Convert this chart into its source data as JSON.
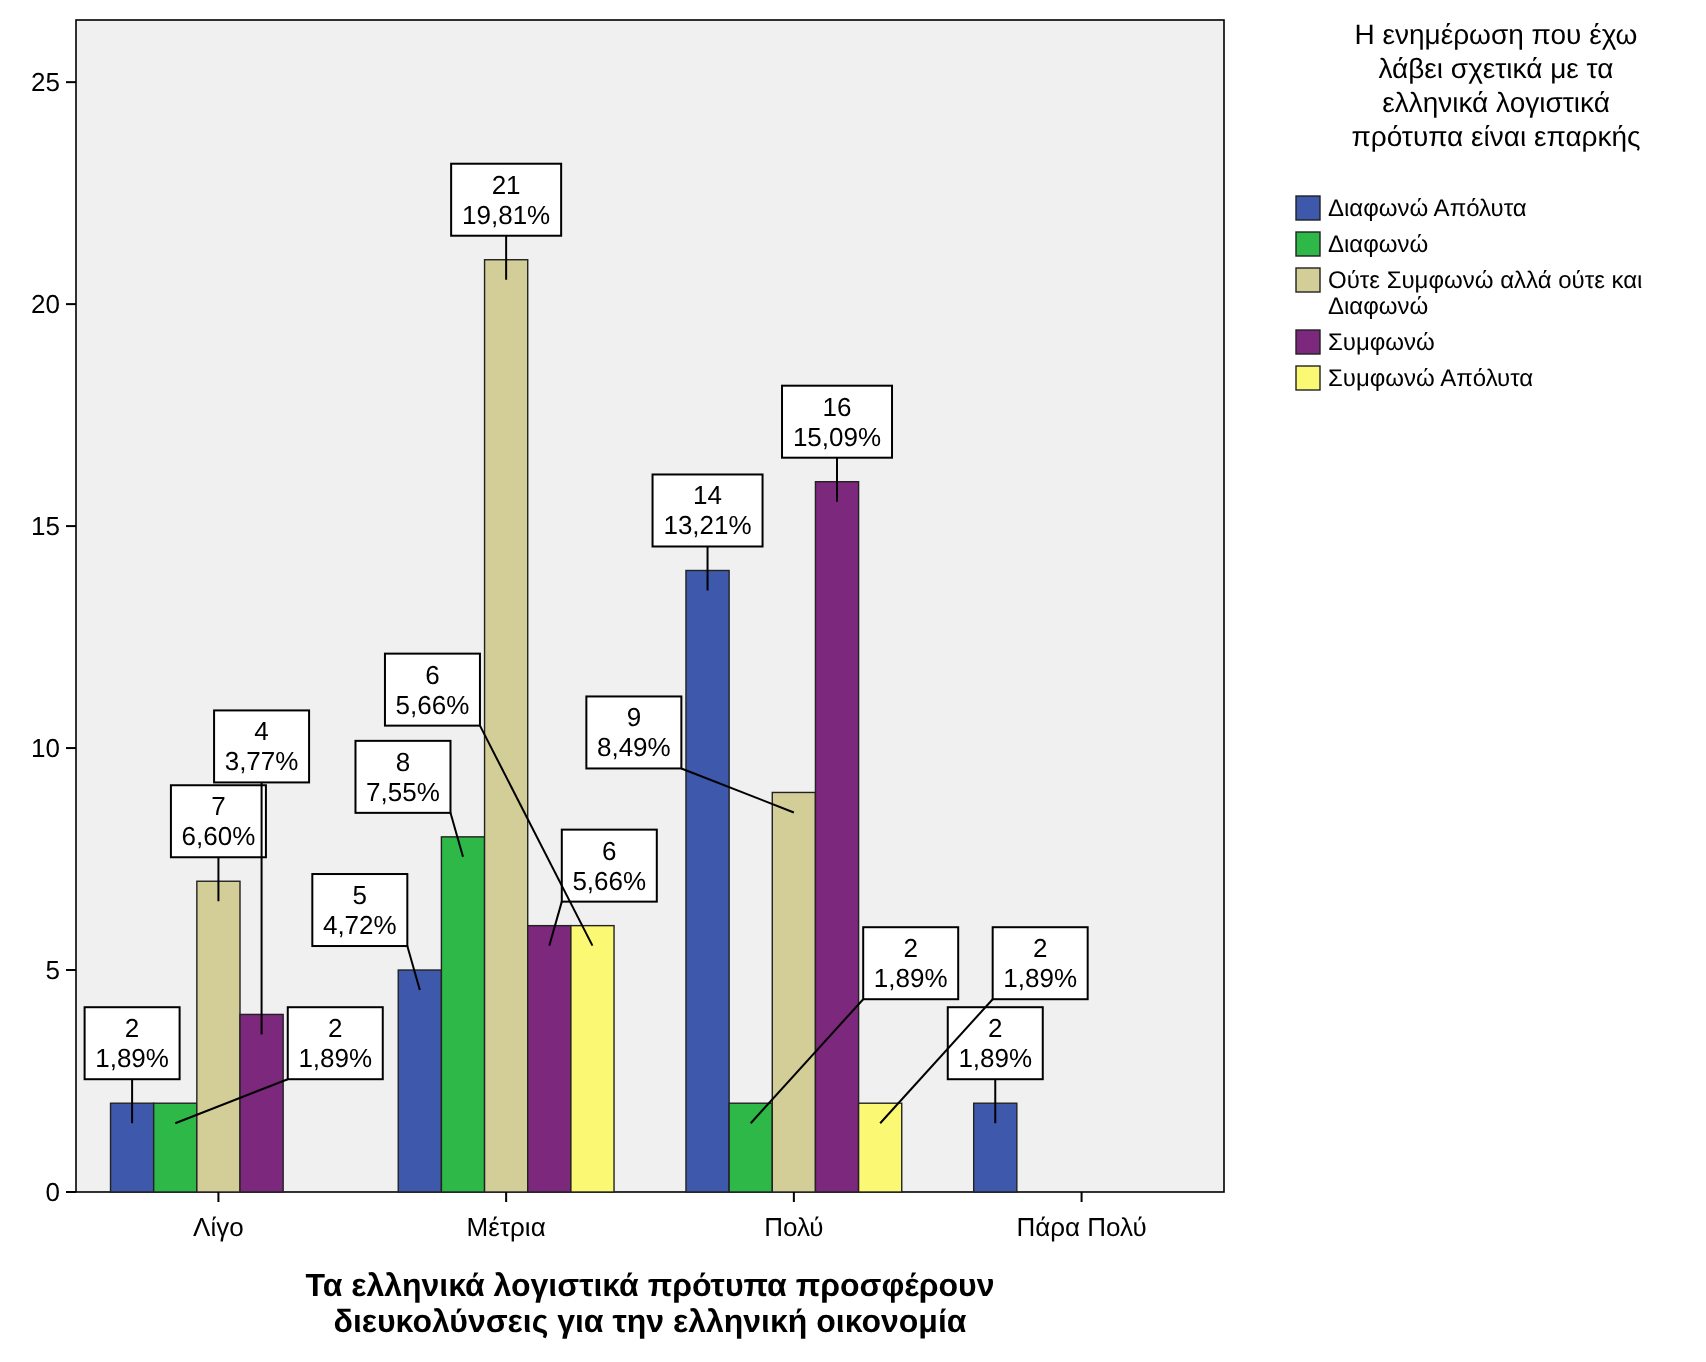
{
  "chart_data": {
    "type": "bar",
    "xlabel": "Τα ελληνικά λογιστικά πρότυπα προσφέρουν διευκολύνσεις για την ελληνική οικονομία",
    "legend_title": "Η ενημέρωση που έχω λάβει σχετικά με τα ελληνικά λογιστικά πρότυπα είναι επαρκής",
    "categories": [
      "Λίγο",
      "Μέτρια",
      "Πολύ",
      "Πάρα Πολύ"
    ],
    "series": [
      {
        "name": "Διαφωνώ Απόλυτα",
        "color": "#3e58ac",
        "values": [
          2,
          5,
          14,
          2
        ],
        "value_labels": [
          "2\n1,89%",
          "5\n4,72%",
          "14\n13,21%",
          "2\n1,89%"
        ]
      },
      {
        "name": "Διαφωνώ",
        "color": "#2eb848",
        "values": [
          2,
          8,
          2,
          null
        ],
        "value_labels": [
          "2\n1,89%",
          "8\n7,55%",
          "2\n1,89%",
          null
        ]
      },
      {
        "name": "Ούτε Συμφωνώ αλλά ούτε και Διαφωνώ",
        "color": "#d3ce97",
        "values": [
          7,
          21,
          9,
          null
        ],
        "value_labels": [
          "7\n6,60%",
          "21\n19,81%",
          "9\n8,49%",
          null
        ]
      },
      {
        "name": "Συμφωνώ",
        "color": "#7c287d",
        "values": [
          4,
          6,
          16,
          null
        ],
        "value_labels": [
          "4\n3,77%",
          "6\n5,66%",
          "16\n15,09%",
          null
        ]
      },
      {
        "name": "Συμφωνώ Απόλυτα",
        "color": "#fbf873",
        "values": [
          null,
          6,
          2,
          null
        ],
        "value_labels": [
          null,
          "6\n5,66%",
          "2\n1,89%",
          null
        ]
      }
    ],
    "ylim": [
      0,
      26.4
    ],
    "yticks": [
      0,
      5,
      10,
      15,
      20,
      25
    ],
    "grid": false,
    "legend": "right"
  }
}
